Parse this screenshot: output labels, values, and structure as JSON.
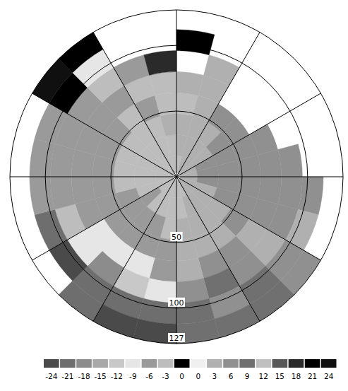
{
  "chart_data": {
    "type": "ppi",
    "rlim": [
      0,
      127
    ],
    "rticks": [
      50,
      100,
      127
    ],
    "azticks": [
      0,
      30,
      60,
      90,
      120,
      150,
      180,
      210,
      240,
      270,
      300,
      330
    ],
    "range_bins": [
      0,
      16,
      32,
      48,
      64,
      80,
      96,
      112,
      127
    ],
    "azimuth_bins": [
      0,
      15,
      30,
      45,
      60,
      75,
      90,
      105,
      120,
      135,
      150,
      165,
      180,
      195,
      210,
      225,
      240,
      255,
      270,
      285,
      300,
      315,
      330,
      345,
      360
    ],
    "cells": [
      [
        -3,
        3,
        3,
        -3,
        3,
        null,
        21,
        null
      ],
      [
        3,
        3,
        3,
        3,
        3,
        3,
        null,
        null
      ],
      [
        3,
        3,
        3,
        6,
        null,
        null,
        null,
        null
      ],
      [
        3,
        3,
        6,
        6,
        null,
        null,
        null,
        null
      ],
      [
        3,
        6,
        6,
        6,
        6,
        null,
        null,
        null
      ],
      [
        3,
        6,
        6,
        6,
        6,
        6,
        null,
        null
      ],
      [
        3,
        6,
        6,
        6,
        6,
        6,
        6,
        null
      ],
      [
        3,
        3,
        6,
        6,
        6,
        6,
        3,
        null
      ],
      [
        3,
        3,
        3,
        6,
        3,
        3,
        6,
        6
      ],
      [
        3,
        3,
        3,
        3,
        6,
        6,
        9,
        9
      ],
      [
        -3,
        3,
        3,
        3,
        6,
        9,
        6,
        9
      ],
      [
        -3,
        -3,
        3,
        3,
        3,
        6,
        9,
        9
      ],
      [
        -3,
        -3,
        -3,
        -6,
        -6,
        -9,
        -21,
        -24
      ],
      [
        -3,
        -3,
        -6,
        -6,
        -9,
        -12,
        -21,
        -24
      ],
      [
        -3,
        -3,
        -6,
        -6,
        -9,
        -18,
        -21,
        -21
      ],
      [
        -3,
        -6,
        -6,
        -6,
        -9,
        -9,
        -24,
        null
      ],
      [
        -3,
        -3,
        -6,
        -6,
        -6,
        -3,
        -21,
        null
      ],
      [
        -3,
        -3,
        -3,
        -6,
        -6,
        -6,
        -6,
        null
      ],
      [
        -3,
        -3,
        -3,
        -6,
        -6,
        -6,
        -6,
        null
      ],
      [
        -3,
        -3,
        -3,
        -6,
        -6,
        -6,
        -6,
        null
      ],
      [
        -3,
        -3,
        -3,
        -6,
        -6,
        -6,
        21,
        24
      ],
      [
        -3,
        -3,
        -3,
        -3,
        -6,
        -3,
        -9,
        21
      ],
      [
        -3,
        -3,
        -3,
        -6,
        -3,
        -6,
        null,
        null
      ],
      [
        -3,
        -3,
        3,
        -3,
        -3,
        18,
        null,
        null
      ]
    ],
    "colorbar": {
      "ticks": [
        -24,
        -21,
        -18,
        -15,
        -12,
        -9,
        -6,
        -3,
        0,
        0,
        3,
        6,
        9,
        12,
        15,
        18,
        21,
        24
      ],
      "colors": [
        "#4a4a4a",
        "#6e6e6e",
        "#8c8c8c",
        "#a8a8a8",
        "#c8c8c8",
        "#e6e6e6",
        "#9a9a9a",
        "#bdbdbd",
        "#000000",
        "#f0f0f0",
        "#b0b0b0",
        "#909090",
        "#707070",
        "#c0c0c0",
        "#585858",
        "#2a2a2a",
        "#000000",
        "#101010"
      ]
    }
  }
}
